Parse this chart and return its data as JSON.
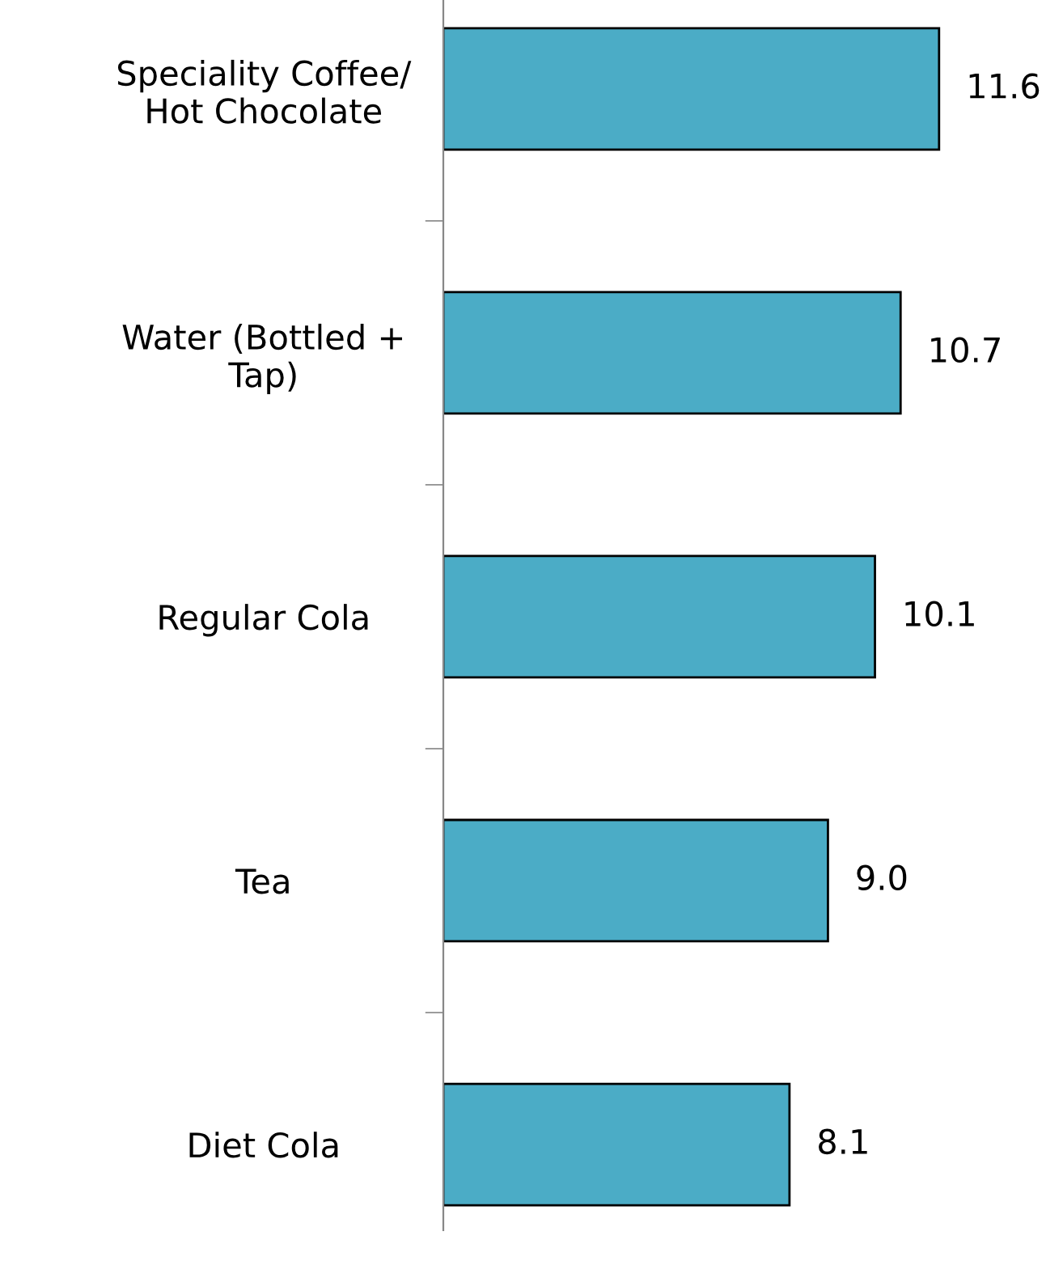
{
  "chart_data": {
    "type": "bar",
    "orientation": "horizontal",
    "categories": [
      "Speciality Coffee/\nHot Chocolate",
      "Water (Bottled +\nTap)",
      "Regular Cola",
      "Tea",
      "Diet Cola"
    ],
    "values": [
      11.6,
      10.7,
      10.1,
      9.0,
      8.1
    ],
    "value_labels": [
      "11.6",
      "10.7",
      "10.1",
      "9.0",
      "8.1"
    ],
    "color": "#4bacc6",
    "grid": false,
    "legend": false,
    "tick_labels": "y"
  }
}
